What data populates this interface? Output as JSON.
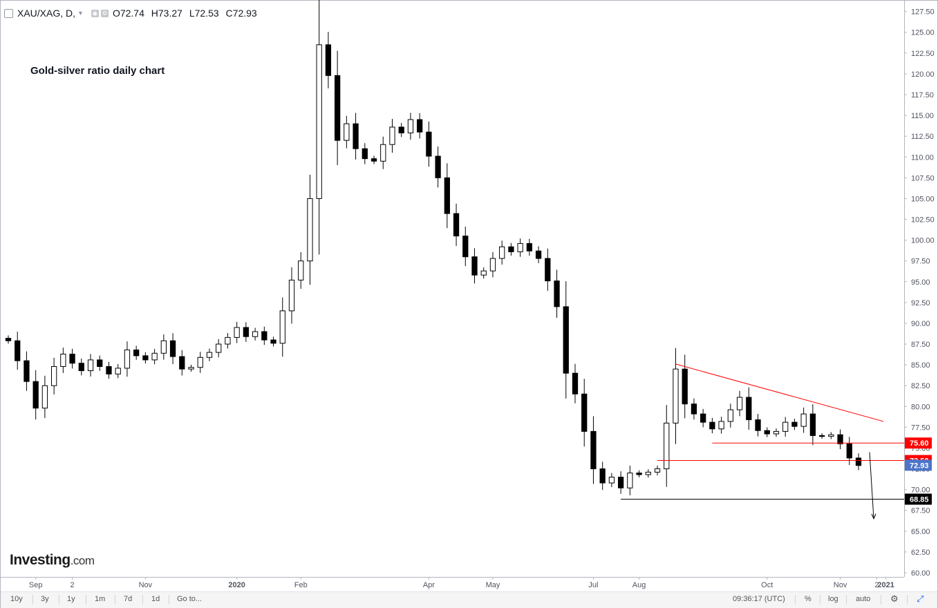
{
  "header": {
    "symbol": "XAU/XAG, D,",
    "open": "O72.74",
    "high": "H73.27",
    "low": "L72.53",
    "close": "C72.93"
  },
  "annotation": "Gold-silver ratio daily chart",
  "logo": {
    "main": "Investing",
    "suffix": ".com"
  },
  "bottom_bar": {
    "ranges": [
      "10y",
      "3y",
      "1y",
      "1m",
      "7d",
      "1d"
    ],
    "goto": "Go to...",
    "time": "09:36:17 (UTC)",
    "percent": "%",
    "log": "log",
    "auto": "auto",
    "gear_icon": "gear-icon",
    "fullscreen_icon": "fullscreen-icon"
  },
  "colors": {
    "trendline": "#ff0000",
    "support": "#000000",
    "last_price": "#4c74c9",
    "candles": "#000000"
  },
  "chart_data": {
    "type": "candlestick",
    "title": "XAU/XAG",
    "interval": "D",
    "ylim": [
      59.5,
      128.8
    ],
    "y_ticks": [
      "127.50",
      "125.00",
      "122.50",
      "120.00",
      "117.50",
      "115.00",
      "112.50",
      "110.00",
      "107.50",
      "105.00",
      "102.50",
      "100.00",
      "97.50",
      "95.00",
      "92.50",
      "90.00",
      "87.50",
      "85.00",
      "82.50",
      "80.00",
      "77.50",
      "75.00",
      "72.50",
      "70.00",
      "67.50",
      "65.00",
      "62.50",
      "60.00"
    ],
    "x_ticks": [
      "Sep",
      "2",
      "Nov",
      "2020",
      "Feb",
      "Apr",
      "May",
      "Jul",
      "Aug",
      "Oct",
      "Nov",
      "2",
      "2021"
    ],
    "last_price": {
      "value": 72.93,
      "label": "72.93"
    },
    "price_labels": [
      {
        "value": 75.6,
        "label": "75.60",
        "color": "#ff0000"
      },
      {
        "value": 73.5,
        "label": "73.50",
        "color": "#ff0000"
      },
      {
        "value": 68.85,
        "label": "68.85",
        "color": "#000000"
      }
    ],
    "series": [
      {
        "month": "2019-08",
        "values": [
          87.9,
          85.5,
          83.0
        ]
      },
      {
        "month": "2019-09",
        "values": [
          79.8,
          82.5,
          84.8,
          86.3
        ]
      },
      {
        "month": "2019-10",
        "values": [
          85.2,
          84.3,
          85.6,
          84.8
        ]
      },
      {
        "month": "2019-11",
        "values": [
          83.9,
          84.6,
          86.8,
          86.1
        ]
      },
      {
        "month": "2019-12",
        "values": [
          85.6,
          86.4,
          87.9,
          86.0,
          84.5
        ]
      },
      {
        "month": "2020-01",
        "values": [
          84.7,
          85.9,
          86.5,
          87.5,
          88.3
        ]
      },
      {
        "month": "2020-02",
        "values": [
          89.5,
          88.4,
          89.0,
          88.0,
          87.6,
          91.5,
          95.2
        ]
      },
      {
        "month": "2020-03",
        "values": [
          97.5,
          105.0,
          123.5,
          119.8,
          112.0,
          114.0,
          111.0,
          109.8
        ]
      },
      {
        "month": "2020-04",
        "values": [
          109.5,
          111.5,
          113.6,
          112.9,
          114.5,
          113.0
        ]
      },
      {
        "month": "2020-05",
        "values": [
          110.1,
          107.5,
          103.2,
          100.5,
          98.0,
          95.8,
          96.3
        ]
      },
      {
        "month": "2020-06",
        "values": [
          97.8,
          99.2,
          98.6,
          99.6,
          98.7
        ]
      },
      {
        "month": "2020-07",
        "values": [
          97.8,
          95.1,
          92.0,
          84.0,
          81.5,
          77.0
        ]
      },
      {
        "month": "2020-08",
        "values": [
          72.5,
          70.8,
          71.5,
          70.2,
          72.0
        ]
      },
      {
        "month": "2020-09",
        "values": [
          71.8,
          72.1,
          72.5,
          78.0,
          84.5,
          80.3,
          79.1
        ]
      },
      {
        "month": "2020-10",
        "values": [
          78.1,
          77.3,
          78.2,
          79.6,
          81.1,
          78.4,
          77.1
        ]
      },
      {
        "month": "2020-11",
        "values": [
          76.7,
          77.0,
          78.1,
          77.6,
          79.1,
          76.5,
          76.4,
          76.6
        ]
      },
      {
        "month": "2020-12",
        "values": [
          75.5,
          73.8,
          72.9
        ]
      }
    ]
  }
}
